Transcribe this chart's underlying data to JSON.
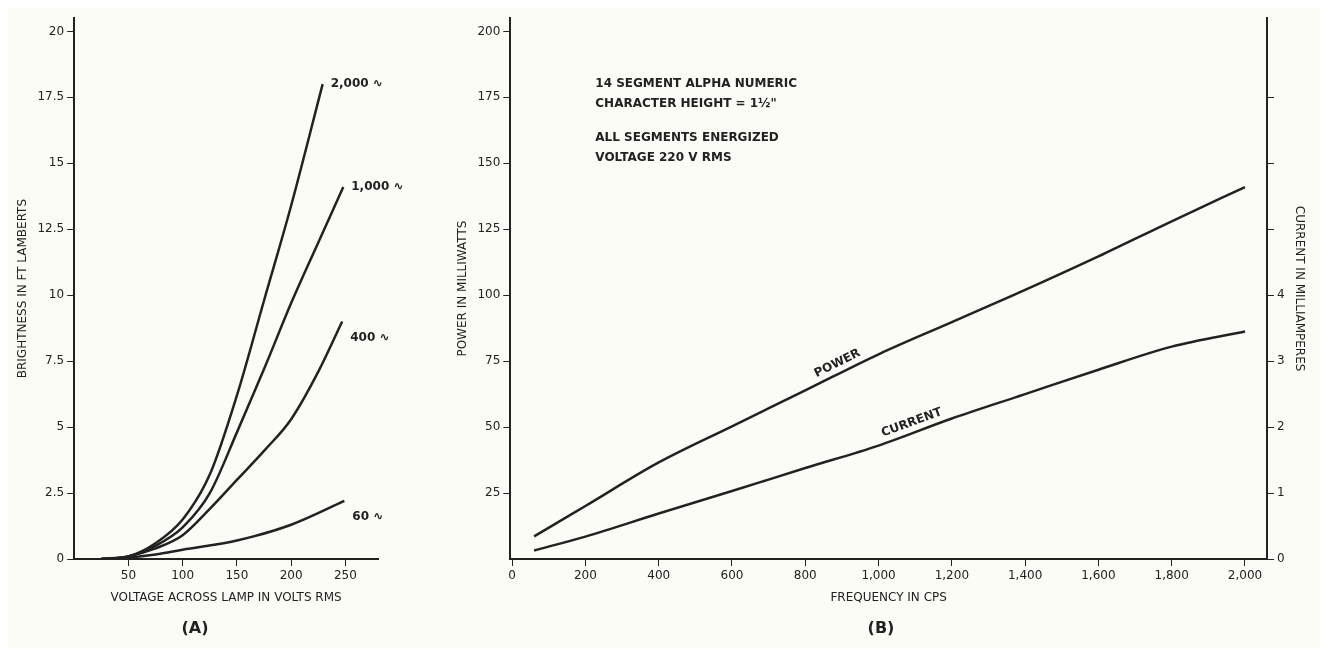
{
  "chart_data": [
    {
      "type": "line",
      "title": "(A)",
      "xlabel": "VOLTAGE ACROSS LAMP IN VOLTS RMS",
      "ylabel": "BRIGHTNESS IN FT LAMBERTS",
      "xlim": [
        0,
        280
      ],
      "xticks": [
        50,
        100,
        150,
        200,
        250
      ],
      "ylim": [
        0,
        20.5
      ],
      "yticks": [
        0,
        2.5,
        5,
        7.5,
        10,
        12.5,
        15,
        17.5,
        20
      ],
      "grid": false,
      "legend": false,
      "marker": "none",
      "line_style": "solid",
      "series": [
        {
          "name": "2,000 ∿",
          "color": "#222222",
          "x": [
            25,
            50,
            75,
            100,
            125,
            150,
            175,
            200,
            229
          ],
          "values": [
            0,
            0.1,
            0.6,
            1.5,
            3.2,
            6.2,
            9.8,
            13.4,
            18.0
          ]
        },
        {
          "name": "1,000 ∿",
          "color": "#222222",
          "x": [
            25,
            50,
            75,
            100,
            125,
            150,
            175,
            200,
            225,
            248
          ],
          "values": [
            0,
            0.1,
            0.5,
            1.2,
            2.5,
            4.8,
            7.2,
            9.7,
            12.0,
            14.1
          ]
        },
        {
          "name": "400 ∿",
          "color": "#222222",
          "x": [
            25,
            50,
            75,
            100,
            125,
            150,
            175,
            200,
            225,
            247
          ],
          "values": [
            0,
            0.1,
            0.4,
            0.9,
            1.9,
            3.0,
            4.1,
            5.3,
            7.1,
            9.0
          ]
        },
        {
          "name": "60 ∿",
          "color": "#222222",
          "x": [
            25,
            50,
            75,
            100,
            150,
            200,
            249
          ],
          "values": [
            0,
            0.05,
            0.17,
            0.35,
            0.7,
            1.3,
            2.2
          ]
        }
      ]
    },
    {
      "type": "line",
      "title": "(B)",
      "xlabel": "FREQUENCY IN CPS",
      "ylabel": "POWER IN MILLIWATTS",
      "y2label": "CURRENT IN MILLIAMPERES",
      "xlim": [
        -5,
        2060
      ],
      "xticks": [
        0,
        200,
        400,
        600,
        800,
        {
          "value": 1000,
          "label": "1,000"
        },
        {
          "value": 1200,
          "label": "1,200"
        },
        {
          "value": 1400,
          "label": "1,400"
        },
        {
          "value": 1600,
          "label": "1,600"
        },
        {
          "value": 1800,
          "label": "1,800"
        },
        {
          "value": 2000,
          "label": "2,000"
        }
      ],
      "ylim": [
        0,
        205
      ],
      "yticks": [
        25,
        50,
        75,
        100,
        125,
        150,
        175,
        200
      ],
      "y2lim": [
        0,
        8.2
      ],
      "y2ticks": [
        0,
        1,
        2,
        3,
        4,
        {
          "value": 5,
          "label": null
        },
        {
          "value": 6,
          "label": null
        },
        {
          "value": 7,
          "label": null
        }
      ],
      "grid": false,
      "legend": false,
      "marker": "none",
      "line_style": "solid",
      "annotations": [
        "14 SEGMENT ALPHA NUMERIC",
        "CHARACTER HEIGHT = 1½\"",
        "ALL SEGMENTS ENERGIZED",
        "VOLTAGE 220 V RMS"
      ],
      "series": [
        {
          "name": "POWER",
          "color": "#222222",
          "x": [
            60,
            200,
            400,
            600,
            800,
            1000,
            1200,
            1400,
            1600,
            1800,
            2000
          ],
          "values": [
            8.6,
            20.1,
            36.6,
            50.3,
            63.9,
            77.6,
            89.8,
            102,
            114.7,
            128,
            141
          ]
        },
        {
          "name": "CURRENT",
          "axis": "y2",
          "color": "#222222",
          "x": [
            60,
            200,
            400,
            600,
            800,
            1000,
            1200,
            1400,
            1600,
            1800,
            2000
          ],
          "values": [
            0.13,
            0.34,
            0.69,
            1.03,
            1.38,
            1.72,
            2.13,
            2.5,
            2.87,
            3.22,
            3.45
          ]
        }
      ]
    }
  ]
}
